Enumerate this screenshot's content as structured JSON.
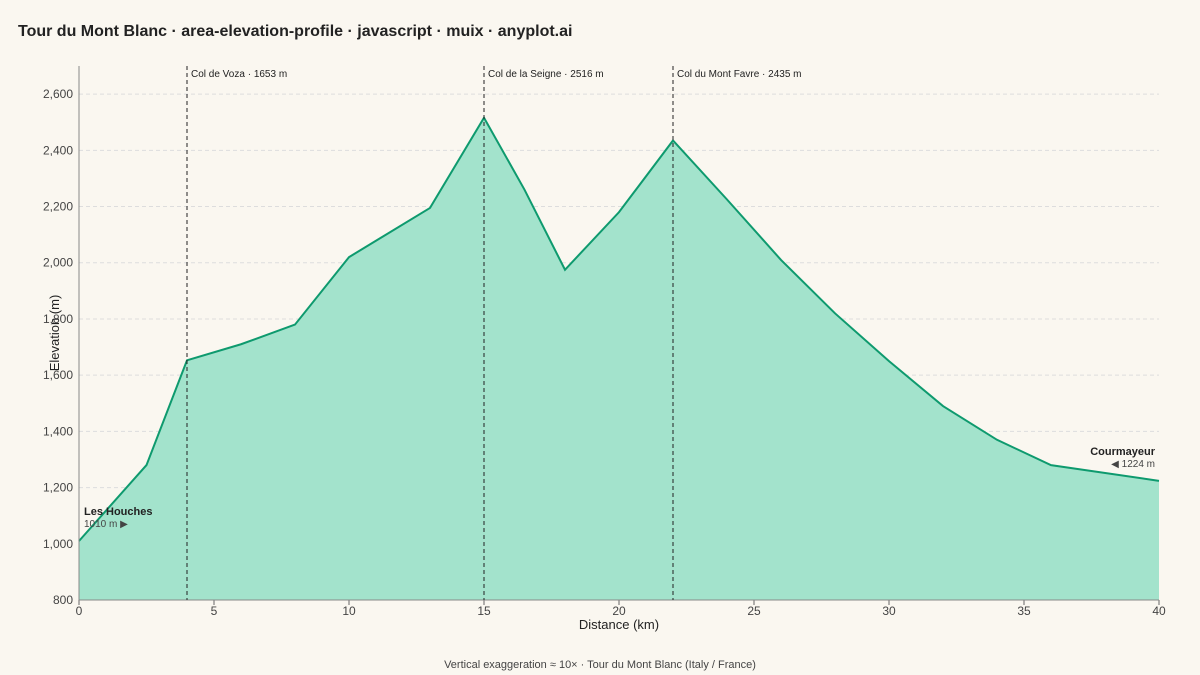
{
  "chart_data": {
    "type": "area",
    "title": "Tour du Mont Blanc · area-elevation-profile · javascript · muix · anyplot.ai",
    "xlabel": "Distance (km)",
    "ylabel": "Elevation (m)",
    "footer": "Vertical exaggeration ≈ 10× · Tour du Mont Blanc (Italy / France)",
    "x": [
      0,
      2.5,
      4,
      6,
      8,
      10,
      13,
      15,
      16.5,
      18,
      20,
      22,
      24,
      26,
      28,
      30,
      32,
      34,
      36,
      40
    ],
    "values": [
      1010,
      1280,
      1653,
      1710,
      1780,
      2020,
      2195,
      2516,
      2260,
      1975,
      2180,
      2435,
      2225,
      2010,
      1820,
      1650,
      1490,
      1370,
      1280,
      1224
    ],
    "color": "#0e9a6e",
    "fill": "#a3e3cc",
    "xlim": [
      0,
      40
    ],
    "xticks": [
      0,
      5,
      10,
      15,
      20,
      25,
      30,
      35,
      40
    ],
    "ylim": [
      800,
      2700
    ],
    "yticks": [
      {
        "value": 800,
        "label": "800"
      },
      {
        "value": 1000,
        "label": "1,000"
      },
      {
        "value": 1200,
        "label": "1,200"
      },
      {
        "value": 1400,
        "label": "1,400"
      },
      {
        "value": 1600,
        "label": "1,600"
      },
      {
        "value": 1800,
        "label": "1,800"
      },
      {
        "value": 2000,
        "label": "2,000"
      },
      {
        "value": 2200,
        "label": "2,200"
      },
      {
        "value": 2400,
        "label": "2,400"
      },
      {
        "value": 2600,
        "label": "2,600"
      }
    ],
    "grid": true,
    "annotations": [
      {
        "x": 4,
        "label": "Col de Voza · 1653 m"
      },
      {
        "x": 15,
        "label": "Col de la Seigne · 2516 m"
      },
      {
        "x": 22,
        "label": "Col du Mont Favre · 2435 m"
      }
    ],
    "start_label": {
      "name": "Les Houches",
      "text": "1010 m ▶"
    },
    "end_label": {
      "name": "Courmayeur",
      "text": "◀ 1224 m"
    }
  }
}
